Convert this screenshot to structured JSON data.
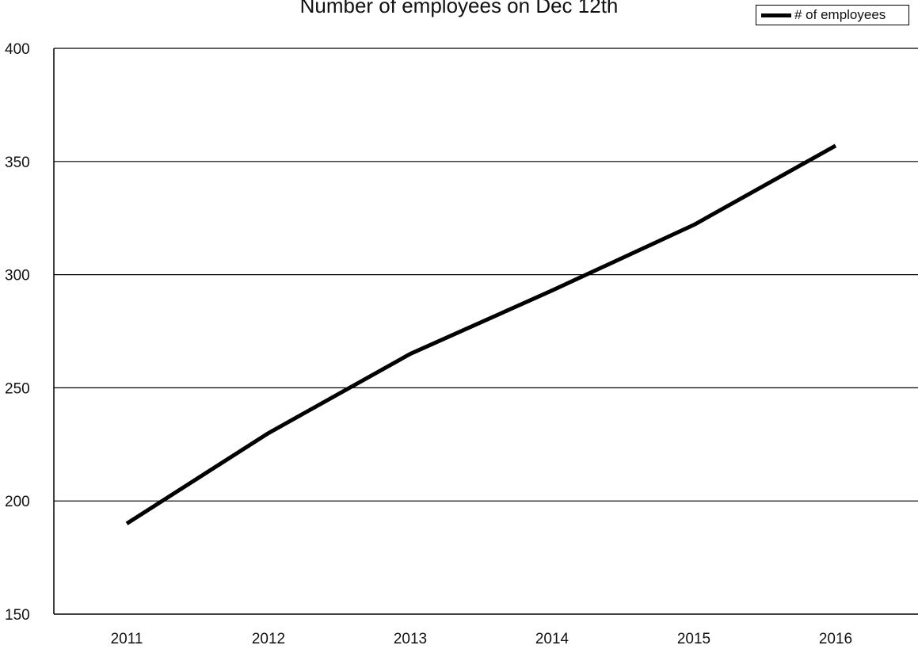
{
  "chart_data": {
    "type": "line",
    "title": "Number of employees on Dec 12th",
    "categories": [
      "2011",
      "2012",
      "2013",
      "2014",
      "2015",
      "2016"
    ],
    "series": [
      {
        "name": "# of employees",
        "values": [
          190,
          230,
          265,
          293,
          322,
          357
        ],
        "color": "#000000"
      }
    ],
    "ylim": [
      150,
      400
    ],
    "yticks": [
      150,
      200,
      250,
      300,
      350,
      400
    ],
    "xlabel": "",
    "ylabel": "",
    "grid": true,
    "legend_position": "top-right"
  }
}
